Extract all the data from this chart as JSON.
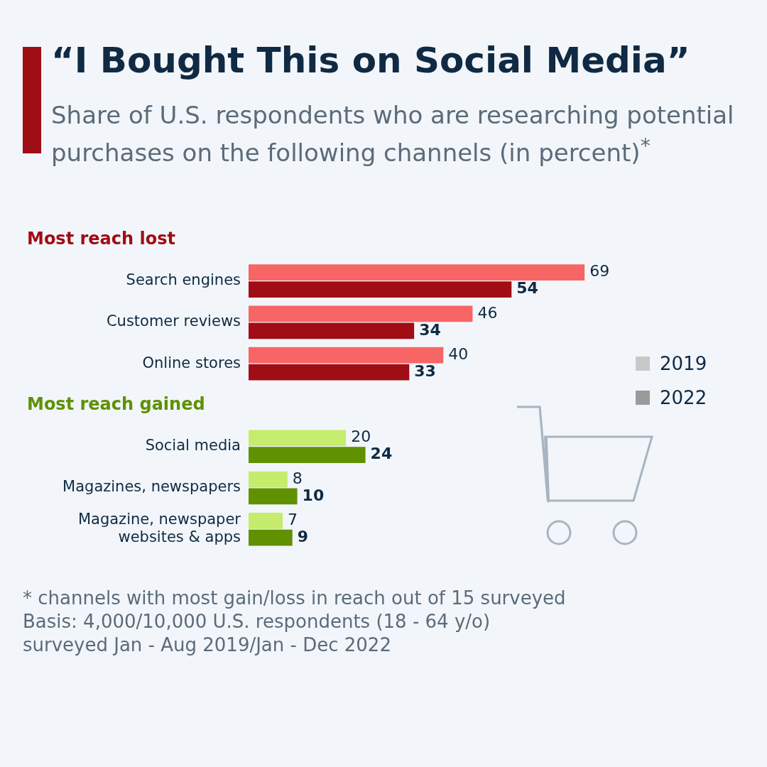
{
  "chart_data": {
    "type": "bar",
    "orientation": "horizontal",
    "title": "“I Bought This on Social Media”",
    "subtitle": "Share of U.S. respondents who are researching potential purchases on the following channels  (in percent)$^{*}$",
    "categories": [
      null,
      "Search engines",
      "Customer reviews",
      "Online stores",
      null,
      "Social media",
      "Magazines, newspapers",
      "Magazine, newspaper\nwebsites & apps"
    ],
    "series": [
      {
        "name": "2019",
        "color": "#c8c8c8",
        "colors": [
          "#f76565",
          "#f76565",
          "#f76565",
          "#f76565",
          "#c5ec6c",
          "#c5ec6c",
          "#c5ec6c",
          "#c5ec6c"
        ],
        "values": [
          null,
          69,
          46,
          40,
          null,
          20,
          8,
          7
        ]
      },
      {
        "name": "2022",
        "color": "#9a9a9a",
        "colors": [
          "#a10d15",
          "#a10d15",
          "#a10d15",
          "#a10d15",
          "#5f9100",
          "#5f9100",
          "#5f9100",
          "#5f9100"
        ],
        "values": [
          null,
          54,
          34,
          33,
          null,
          24,
          10,
          9
        ]
      }
    ],
    "data_labels": true,
    "legend": "right",
    "grid": false,
    "annotations": [
      "Most reach lost",
      "Most reach gained",
      "* channels with most gain/loss in reach out of 15 surveyed",
      "Basis: 4,000/10,000 U.S. respondents (18 - 64 y/o)\nsurveyed Jan - Aug 2019/Jan - Dec 2022"
    ]
  }
}
